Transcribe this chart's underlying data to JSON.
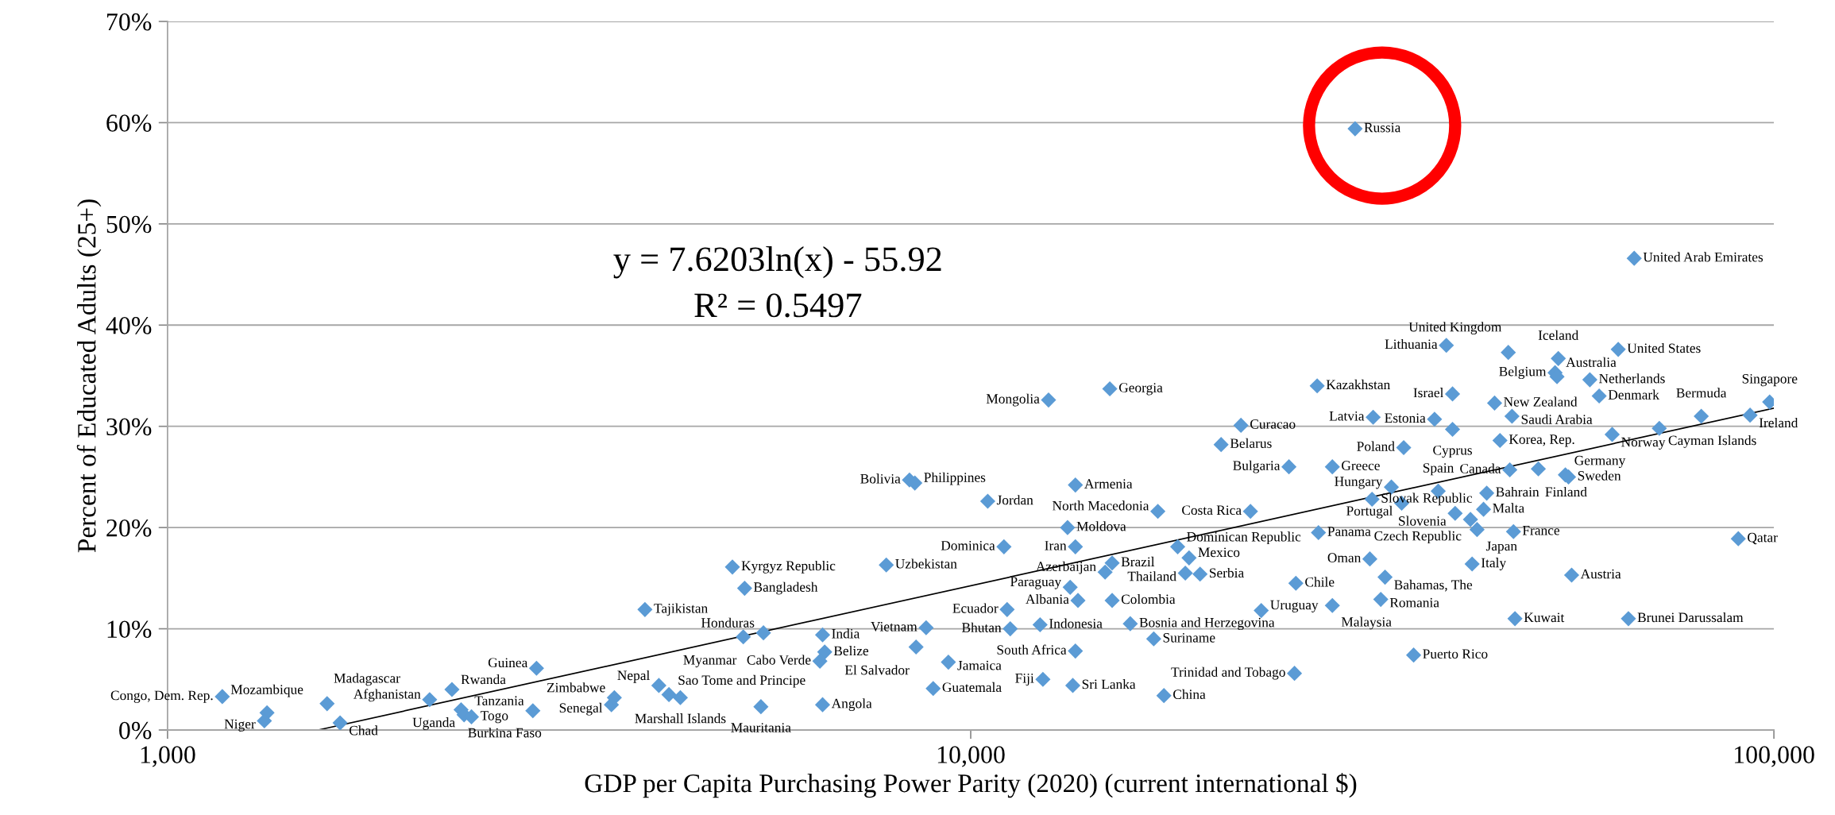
{
  "chart_data": {
    "type": "scatter",
    "xlabel": "GDP per Capita Purchasing Power Parity (2020) (current international $)",
    "ylabel": "Percent of Educated Adults (25+)",
    "annotations": [
      "y = 7.6203ln(x) - 55.92",
      "R² = 0.5497"
    ],
    "log": "x",
    "grid": "y",
    "legend": false,
    "xlim": [
      1000,
      100000
    ],
    "xticks": [
      {
        "value": 1000,
        "label": "1,000"
      },
      {
        "value": 10000,
        "label": "10,000"
      },
      {
        "value": 100000,
        "label": "100,000"
      }
    ],
    "ylim": [
      0,
      70
    ],
    "yticks": [
      {
        "value": 0,
        "label": "0%"
      },
      {
        "value": 10,
        "label": "10%"
      },
      {
        "value": 20,
        "label": "20%"
      },
      {
        "value": 30,
        "label": "30%"
      },
      {
        "value": 40,
        "label": "40%"
      },
      {
        "value": 50,
        "label": "50%"
      },
      {
        "value": 60,
        "label": "60%"
      },
      {
        "value": 70,
        "label": "70%"
      }
    ],
    "series": [
      {
        "type": "scatter",
        "color": "#5b9bd5",
        "marker": "diamond",
        "x": [
          30100,
          67000,
          39100,
          46700,
          64000,
          53900,
          53400,
          53700,
          59000,
          27000,
          39800,
          44900,
          60600,
          98800,
          81200,
          93400,
          31700,
          37800,
          47200,
          39800,
          45600,
          62900,
          72000,
          21700,
          20500,
          34600,
          24900,
          28200,
          46900,
          50900,
          55000,
          55500,
          33400,
          31600,
          38200,
          34400,
          43900,
          43500,
          40100,
          41900,
          42700,
          47400,
          90300,
          22300,
          17100,
          27100,
          31400,
          42100,
          32800,
          56000,
          25400,
          32400,
          28200,
          23000,
          47600,
          65900,
          35600,
          12500,
          14900,
          8390,
          8520,
          10500,
          13500,
          13200,
          11000,
          13500,
          18100,
          18700,
          15000,
          14700,
          18500,
          19300,
          7850,
          13300,
          13600,
          15000,
          11100,
          8800,
          11200,
          12200,
          15800,
          16900,
          8550,
          13500,
          6580,
          6490,
          9380,
          25300,
          8980,
          12300,
          13400,
          17400,
          1170,
          1330,
          1320,
          1580,
          1640,
          2120,
          2260,
          2320,
          2340,
          2390,
          2850,
          2880,
          3570,
          3600,
          4090,
          4210,
          4350,
          5050,
          5230,
          3930,
          5210,
          5520,
          6540,
          5480,
          6540
        ],
        "values": [
          59.4,
          46.6,
          38.0,
          37.3,
          37.6,
          36.7,
          35.3,
          34.9,
          34.6,
          34.0,
          33.2,
          32.3,
          33.0,
          32.4,
          31.0,
          31.1,
          30.9,
          30.7,
          31.0,
          29.7,
          28.6,
          29.2,
          29.8,
          30.1,
          28.2,
          27.9,
          26.0,
          26.0,
          25.7,
          25.8,
          25.2,
          25.0,
          24.0,
          22.8,
          23.6,
          22.4,
          23.4,
          21.8,
          21.4,
          20.8,
          19.8,
          19.6,
          18.9,
          21.6,
          21.6,
          19.5,
          16.9,
          16.4,
          15.1,
          15.3,
          14.5,
          12.9,
          12.3,
          11.8,
          11.0,
          11.0,
          7.4,
          32.6,
          33.7,
          24.7,
          24.4,
          22.6,
          24.2,
          20.0,
          18.1,
          18.1,
          18.1,
          17.0,
          16.5,
          15.6,
          15.5,
          15.4,
          16.3,
          14.1,
          12.8,
          12.8,
          11.9,
          10.1,
          10.0,
          10.4,
          10.5,
          9.0,
          8.2,
          7.8,
          7.7,
          6.8,
          6.7,
          5.6,
          4.1,
          5.0,
          4.4,
          3.4,
          3.3,
          1.7,
          0.9,
          2.6,
          0.7,
          3.0,
          4.0,
          2.0,
          1.5,
          1.3,
          1.9,
          6.1,
          2.5,
          3.2,
          4.4,
          3.5,
          3.2,
          16.1,
          14.0,
          11.9,
          9.2,
          9.6,
          9.4,
          2.3,
          2.5
        ],
        "value_labels": [
          "Russia",
          "United Arab Emirates",
          "Lithuania",
          "United Kingdom",
          "United States",
          "Iceland",
          "Belgium",
          "Australia",
          "Netherlands",
          "Kazakhstan",
          "Israel",
          "New Zealand",
          "Denmark",
          "Singapore",
          "Bermuda",
          "Ireland",
          "Latvia",
          "Estonia",
          "Saudi Arabia",
          "Cyprus",
          "Korea, Rep.",
          "Norway",
          "Cayman Islands",
          "Curacao",
          "Belarus",
          "Poland",
          "Bulgaria",
          "Greece",
          "Canada",
          "Finland",
          "Germany",
          "Sweden",
          "Hungary",
          "Slovak Republic",
          "Spain",
          "Portugal",
          "Bahrain",
          "Malta",
          "Slovenia",
          "Czech Republic",
          "Japan",
          "France",
          "Qatar",
          "Costa Rica",
          "North Macedonia",
          "Panama",
          "Oman",
          "Italy",
          "Bahamas, The",
          "Austria",
          "Chile",
          "Romania",
          "Malaysia",
          "Uruguay",
          "Kuwait",
          "Brunei Darussalam",
          "Puerto Rico",
          "Mongolia",
          "Georgia",
          "Bolivia",
          "Philippines",
          "Jordan",
          "Armenia",
          "Moldova",
          "Dominica",
          "Iran",
          "Dominican Republic",
          "Mexico",
          "Brazil",
          "Azerbaijan",
          "Thailand",
          "Serbia",
          "Uzbekistan",
          "Paraguay",
          "Albania",
          "Colombia",
          "Ecuador",
          "Vietnam",
          "Bhutan",
          "Indonesia",
          "Bosnia and Herzegovina",
          "Suriname",
          "El Salvador",
          "South Africa",
          "Belize",
          "Cabo Verde",
          "Jamaica",
          "Trinidad and Tobago",
          "Guatemala",
          "Fiji",
          "Sri Lanka",
          "China",
          "Congo, Dem. Rep.",
          "Mozambique",
          "Niger",
          "Madagascar",
          "Chad",
          "Afghanistan",
          "Rwanda",
          "Burkina Faso",
          "Uganda",
          "Togo",
          "Tanzania",
          "Guinea",
          "Senegal",
          "Zimbabwe",
          "Nepal",
          "Sao Tome and Principe",
          "Marshall Islands",
          "Kyrgyz Republic",
          "Bangladesh",
          "Tajikistan",
          "Myanmar",
          "Honduras",
          "India",
          "Mauritania",
          "Angola"
        ]
      },
      {
        "type": "line",
        "color": "#000000",
        "line_style": "solid",
        "x": [
          1540,
          100000
        ],
        "values": [
          0.0,
          31.8
        ]
      }
    ]
  }
}
